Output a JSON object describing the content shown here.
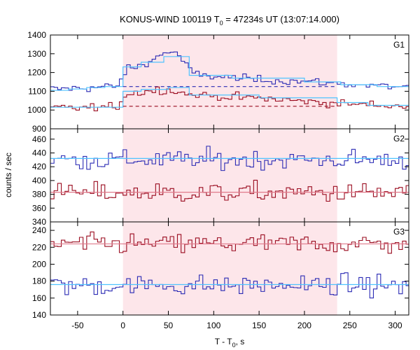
{
  "title": {
    "prefix": "KONUS-WIND 100119 T",
    "sub": "0",
    "suffix": " = 47234s UT (13:07:14.000)"
  },
  "xlabel": {
    "prefix": "T - T",
    "sub": "0",
    "suffix": ", s"
  },
  "ylabel": "counts / sec",
  "colors": {
    "blue": "#2a2ab4",
    "red": "#9a0b1f",
    "fit": "#4fc3ff",
    "fit_red": "#e07a8c",
    "shade": "#fde6ea",
    "frame": "#000000"
  },
  "chart_data": {
    "type": "line",
    "xlim": [
      -80,
      315
    ],
    "xticks": [
      -50,
      0,
      50,
      100,
      150,
      200,
      250,
      300
    ],
    "shaded_interval": [
      0,
      236
    ],
    "panels": [
      {
        "name": "G1",
        "ylim": [
          900,
          1400
        ],
        "yticks": [
          900,
          1000,
          1100,
          1200,
          1300,
          1400
        ],
        "series": [
          {
            "color": "blue",
            "step": 4,
            "background": 1125,
            "shape": [
              [
                -80,
                1110
              ],
              [
                -40,
                1118
              ],
              [
                -5,
                1128
              ],
              [
                0,
                1175
              ],
              [
                5,
                1225
              ],
              [
                20,
                1235
              ],
              [
                35,
                1275
              ],
              [
                50,
                1315
              ],
              [
                62,
                1290
              ],
              [
                72,
                1220
              ],
              [
                80,
                1190
              ],
              [
                110,
                1175
              ],
              [
                160,
                1160
              ],
              [
                210,
                1150
              ],
              [
                240,
                1140
              ],
              [
                315,
                1120
              ]
            ],
            "fit_steps": [
              [
                -80,
                1105
              ],
              [
                -60,
                1112
              ],
              [
                -40,
                1120
              ],
              [
                -20,
                1125
              ],
              [
                0,
                1230
              ],
              [
                20,
                1255
              ],
              [
                45,
                1285
              ],
              [
                73,
                1185
              ],
              [
                120,
                1170
              ],
              [
                200,
                1150
              ],
              [
                240,
                1135
              ],
              [
                280,
                1125
              ],
              [
                315,
                1130
              ]
            ]
          },
          {
            "color": "red",
            "step": 4,
            "background": 1020,
            "shape": [
              [
                -80,
                1010
              ],
              [
                -5,
                1015
              ],
              [
                0,
                1080
              ],
              [
                25,
                1100
              ],
              [
                50,
                1110
              ],
              [
                70,
                1085
              ],
              [
                100,
                1075
              ],
              [
                160,
                1060
              ],
              [
                236,
                1035
              ],
              [
                315,
                1020
              ]
            ],
            "fit_steps": [
              [
                -80,
                1015
              ],
              [
                0,
                1100
              ],
              [
                20,
                1110
              ],
              [
                50,
                1120
              ],
              [
                73,
                1080
              ],
              [
                150,
                1065
              ],
              [
                236,
                1040
              ],
              [
                270,
                1025
              ],
              [
                315,
                1020
              ]
            ]
          }
        ]
      },
      {
        "name": "G2",
        "ylim": [
          340,
          475
        ],
        "yticks": [
          340,
          360,
          380,
          400,
          420,
          440,
          460
        ],
        "series": [
          {
            "color": "blue",
            "step": 4,
            "background": 432,
            "shape": [
              [
                -80,
                430
              ],
              [
                315,
                430
              ]
            ],
            "fit_steps": [
              [
                -80,
                432
              ],
              [
                315,
                432
              ]
            ]
          },
          {
            "color": "red",
            "step": 4,
            "background": 383,
            "shape": [
              [
                -80,
                382
              ],
              [
                315,
                382
              ]
            ],
            "fit_steps": [
              [
                -80,
                383
              ],
              [
                315,
                383
              ]
            ]
          }
        ]
      },
      {
        "name": "G3",
        "ylim": [
          140,
          250
        ],
        "yticks": [
          140,
          160,
          180,
          200,
          220,
          240
        ],
        "series": [
          {
            "color": "red",
            "step": 4,
            "background": 224,
            "shape": [
              [
                -80,
                224
              ],
              [
                315,
                224
              ]
            ],
            "fit_steps": [
              [
                -80,
                224
              ],
              [
                315,
                224
              ]
            ]
          },
          {
            "color": "blue",
            "step": 4,
            "background": 176,
            "shape": [
              [
                -80,
                175
              ],
              [
                315,
                175
              ]
            ],
            "fit_steps": [
              [
                -80,
                176
              ],
              [
                315,
                176
              ]
            ]
          }
        ]
      }
    ]
  }
}
